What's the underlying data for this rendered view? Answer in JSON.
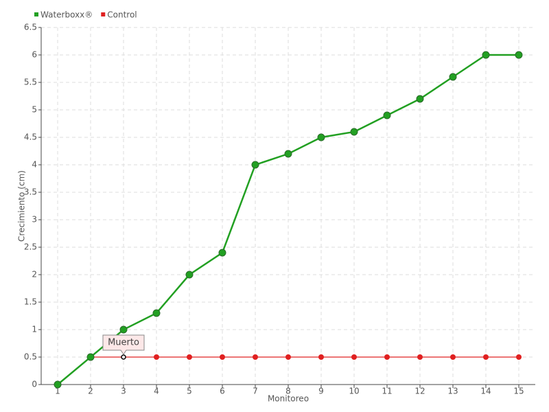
{
  "chart_data": {
    "type": "line",
    "xlabel": "Monitoreo",
    "ylabel": "Crecimiento (cm)",
    "categories": [
      "1",
      "2",
      "3",
      "4",
      "5",
      "6",
      "7",
      "8",
      "9",
      "10",
      "11",
      "12",
      "13",
      "14",
      "15"
    ],
    "series": [
      {
        "name": "Waterboxx®",
        "color": "#22a022",
        "values": [
          0,
          0.5,
          1,
          1.3,
          2,
          2.4,
          4,
          4.2,
          4.5,
          4.6,
          4.9,
          5.2,
          5.6,
          6,
          6
        ]
      },
      {
        "name": "Control",
        "color": "#e02020",
        "values": [
          0,
          0.5,
          0.5,
          0.5,
          0.5,
          0.5,
          0.5,
          0.5,
          0.5,
          0.5,
          0.5,
          0.5,
          0.5,
          0.5,
          0.5
        ]
      }
    ],
    "annotation": "Muerto",
    "ylim": [
      0,
      6.5
    ],
    "yticks": [
      0,
      0.5,
      1,
      1.5,
      2,
      2.5,
      3,
      3.5,
      4,
      4.5,
      5,
      5.5,
      6,
      6.5
    ],
    "grid": true,
    "legend": "top-left"
  }
}
